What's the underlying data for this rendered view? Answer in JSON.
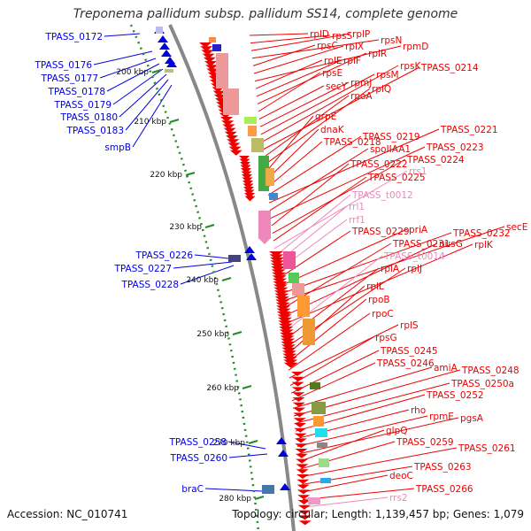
{
  "title": "Treponema pallidum subsp. pallidum SS14, complete genome",
  "footer": {
    "accession": "Accession: NC_010741",
    "summary": "Topology: circular; Length: 1,139,457 bp; Genes: 1,079"
  },
  "colors": {
    "backbone": "#888888",
    "reverse_strand": "#0000dd",
    "forward_strand": "#ee0000",
    "rna": "#ee88bb",
    "ticks": "#228b22"
  },
  "ticks": [
    "200 kbp",
    "210 kbp",
    "220 kbp",
    "230 kbp",
    "240 kbp",
    "250 kbp",
    "260 kbp",
    "270 kbp",
    "280 kbp"
  ],
  "left_labels": [
    "TPASS_0172",
    "TPASS_0176",
    "TPASS_0177",
    "TPASS_0178",
    "TPASS_0179",
    "TPASS_0180",
    "TPASS_0183",
    "smpB",
    "TPASS_0226",
    "TPASS_0227",
    "TPASS_0228",
    "TPASS_0258",
    "TPASS_0260",
    "braC"
  ],
  "right_labels": [
    "rplD",
    "rpsS",
    "rplP",
    "rpsN",
    "rpsC",
    "rplX",
    "rpmD",
    "rplE",
    "rplF",
    "rplR",
    "rpsE",
    "secY",
    "rpmJ",
    "rpsM",
    "rpsK",
    "TPASS_0214",
    "rpoA",
    "rplQ",
    "grpE",
    "dnaK",
    "TPASS_0218",
    "TPASS_0219",
    "TPASS_0221",
    "spoIIAA1",
    "TPASS_0223",
    "TPASS_0222",
    "TPASS_0224",
    "TPASS_0225",
    "rrs1",
    "TPASS_t0012",
    "rrl1",
    "rrf1",
    "TPASS_0229",
    "priA",
    "TPASS_0232",
    "secE",
    "TPASS_0231",
    "nusG",
    "rplK",
    "TPASS_t0014",
    "rplA",
    "rplJ",
    "rplL",
    "rpoB",
    "rpoC",
    "rplS",
    "rpsG",
    "TPASS_0245",
    "TPASS_0246",
    "amiA",
    "TPASS_0248",
    "TPASS_0250a",
    "TPASS_0252",
    "rho",
    "rpmE",
    "pgsA",
    "glpQ",
    "TPASS_0259",
    "TPASS_0261",
    "TPASS_0263",
    "deoC",
    "TPASS_0266",
    "rrs2"
  ]
}
